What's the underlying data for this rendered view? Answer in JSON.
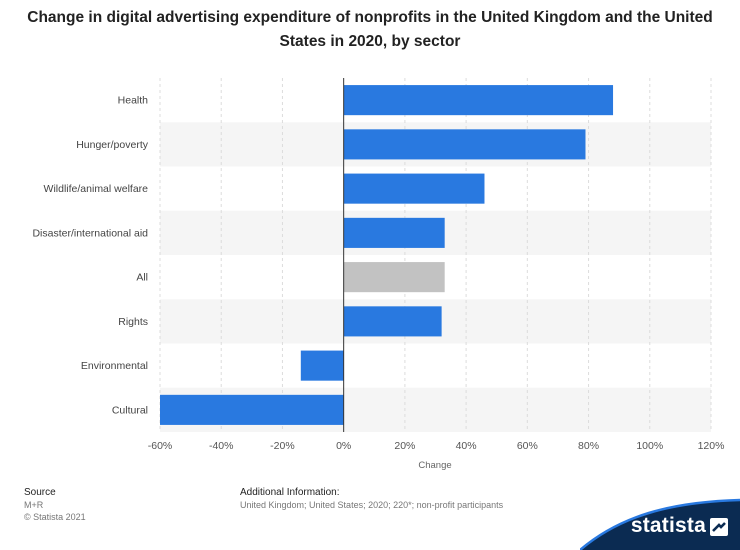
{
  "title": "Change in digital advertising expenditure of nonprofits in the United Kingdom and the United States in 2020, by sector",
  "footer": {
    "source_heading": "Source",
    "source_lines": [
      "M+R",
      "© Statista 2021"
    ],
    "info_heading": "Additional Information:",
    "info_text": "United Kingdom; United States; 2020; 220*; non-profit participants"
  },
  "brand": {
    "name": "statista",
    "logo_icon": "statista-logo-icon",
    "color": "#0b2b52"
  },
  "colors": {
    "bar": "#2979e0",
    "highlight": "#c2c2c2",
    "band": "#f5f5f5",
    "grid": "#dcdcdc",
    "zero_line": "#333333"
  },
  "chart_data": {
    "type": "bar",
    "orientation": "horizontal",
    "categories": [
      "Health",
      "Hunger/poverty",
      "Wildlife/animal welfare",
      "Disaster/international aid",
      "All",
      "Rights",
      "Environmental",
      "Cultural"
    ],
    "values": [
      88,
      79,
      46,
      33,
      33,
      32,
      -14,
      -60
    ],
    "highlight_category": "All",
    "xlabel": "Change",
    "xlim": [
      -60,
      120
    ],
    "xticks": [
      -60,
      -40,
      -20,
      0,
      20,
      40,
      60,
      80,
      100,
      120
    ],
    "tick_labels": [
      "-60%",
      "-40%",
      "-20%",
      "0%",
      "20%",
      "40%",
      "60%",
      "80%",
      "100%",
      "120%"
    ],
    "grid": true,
    "legend": "none"
  }
}
